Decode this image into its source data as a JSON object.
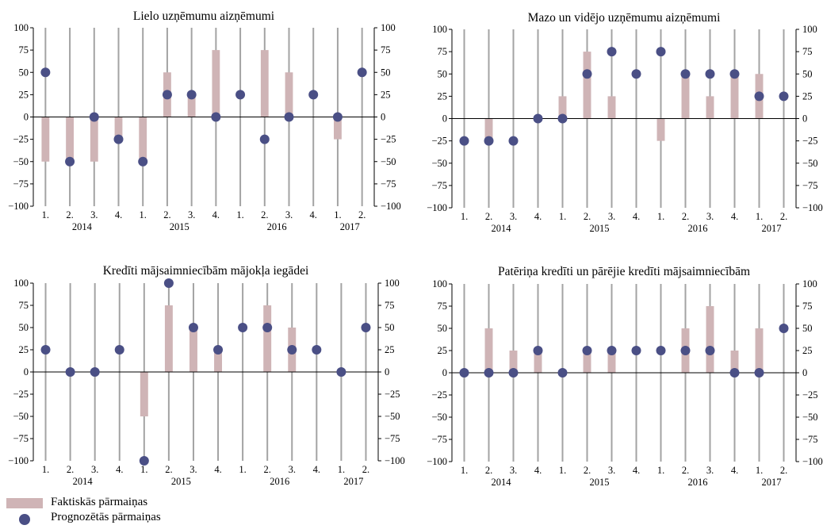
{
  "colors": {
    "bar": "#cfb4b6",
    "dot": "#4a4f85",
    "gridline": "#a3a3a3",
    "axis": "#000000"
  },
  "legend": {
    "bar_label": "Faktiskās pārmaiņas",
    "dot_label": "Prognozētās pārmaiņas"
  },
  "chart_data": [
    {
      "type": "bar",
      "title": "Lielo uzņēmumu aizņēmumi",
      "categories": [
        "1.",
        "2.",
        "3.",
        "4.",
        "1.",
        "2.",
        "3.",
        "4.",
        "1.",
        "2.",
        "3.",
        "4.",
        "1.",
        "2."
      ],
      "years": [
        {
          "label": "2014",
          "start": 0,
          "end": 3
        },
        {
          "label": "2015",
          "start": 4,
          "end": 7
        },
        {
          "label": "2016",
          "start": 8,
          "end": 11
        },
        {
          "label": "2017",
          "start": 12,
          "end": 13
        }
      ],
      "ylim": [
        -100,
        100
      ],
      "yticks": [
        -100,
        -75,
        -50,
        -25,
        0,
        25,
        50,
        75,
        100
      ],
      "series": [
        {
          "name": "Faktiskās pārmaiņas",
          "values": [
            -50,
            -50,
            -50,
            -25,
            -50,
            50,
            25,
            75,
            0,
            75,
            50,
            0,
            -25,
            null
          ]
        },
        {
          "name": "Prognozētās pārmaiņas",
          "values": [
            50,
            -50,
            0,
            -25,
            -50,
            25,
            25,
            0,
            25,
            -25,
            0,
            25,
            0,
            50
          ]
        }
      ]
    },
    {
      "type": "bar",
      "title": "Mazo un vidējo uzņēmumu aizņēmumi",
      "categories": [
        "1.",
        "2.",
        "3.",
        "4.",
        "1.",
        "2.",
        "3.",
        "4.",
        "1.",
        "2.",
        "3.",
        "4.",
        "1.",
        "2."
      ],
      "years": [
        {
          "label": "2014",
          "start": 0,
          "end": 3
        },
        {
          "label": "2015",
          "start": 4,
          "end": 7
        },
        {
          "label": "2016",
          "start": 8,
          "end": 11
        },
        {
          "label": "2017",
          "start": 12,
          "end": 13
        }
      ],
      "ylim": [
        -100,
        100
      ],
      "yticks": [
        -100,
        -75,
        -50,
        -25,
        0,
        25,
        50,
        75,
        100
      ],
      "series": [
        {
          "name": "Faktiskās pārmaiņas",
          "values": [
            0,
            -25,
            0,
            0,
            25,
            75,
            25,
            0,
            -25,
            50,
            25,
            50,
            50,
            null
          ]
        },
        {
          "name": "Prognozētās pārmaiņas",
          "values": [
            -25,
            -25,
            -25,
            0,
            0,
            50,
            75,
            50,
            75,
            50,
            50,
            50,
            25,
            25
          ]
        }
      ]
    },
    {
      "type": "bar",
      "title": "Kredīti mājsaimniecībām mājokļa iegādei",
      "categories": [
        "1.",
        "2.",
        "3.",
        "4.",
        "1.",
        "2.",
        "3.",
        "4.",
        "1.",
        "2.",
        "3.",
        "4.",
        "1.",
        "2."
      ],
      "years": [
        {
          "label": "2014",
          "start": 0,
          "end": 3
        },
        {
          "label": "2015",
          "start": 4,
          "end": 7
        },
        {
          "label": "2016",
          "start": 8,
          "end": 11
        },
        {
          "label": "2017",
          "start": 12,
          "end": 13
        }
      ],
      "ylim": [
        -100,
        100
      ],
      "yticks": [
        -100,
        -75,
        -50,
        -25,
        0,
        25,
        50,
        75,
        100
      ],
      "series": [
        {
          "name": "Faktiskās pārmaiņas",
          "values": [
            0,
            0,
            0,
            0,
            -50,
            75,
            50,
            25,
            0,
            75,
            50,
            0,
            0,
            null
          ]
        },
        {
          "name": "Prognozētās pārmaiņas",
          "values": [
            25,
            0,
            0,
            25,
            -100,
            100,
            50,
            25,
            50,
            50,
            25,
            25,
            0,
            50
          ]
        }
      ]
    },
    {
      "type": "bar",
      "title": "Patēriņa kredīti un pārējie kredīti mājsaimniecībām",
      "categories": [
        "1.",
        "2.",
        "3.",
        "4.",
        "1.",
        "2.",
        "3.",
        "4.",
        "1.",
        "2.",
        "3.",
        "4.",
        "1.",
        "2."
      ],
      "years": [
        {
          "label": "2014",
          "start": 0,
          "end": 3
        },
        {
          "label": "2015",
          "start": 4,
          "end": 7
        },
        {
          "label": "2016",
          "start": 8,
          "end": 11
        },
        {
          "label": "2017",
          "start": 12,
          "end": 13
        }
      ],
      "ylim": [
        -100,
        100
      ],
      "yticks": [
        -100,
        -75,
        -50,
        -25,
        0,
        25,
        50,
        75,
        100
      ],
      "series": [
        {
          "name": "Faktiskās pārmaiņas",
          "values": [
            0,
            50,
            25,
            25,
            0,
            25,
            25,
            0,
            0,
            50,
            75,
            25,
            50,
            null
          ]
        },
        {
          "name": "Prognozētās pārmaiņas",
          "values": [
            0,
            0,
            0,
            25,
            0,
            25,
            25,
            25,
            25,
            25,
            25,
            0,
            0,
            50
          ]
        }
      ]
    }
  ]
}
